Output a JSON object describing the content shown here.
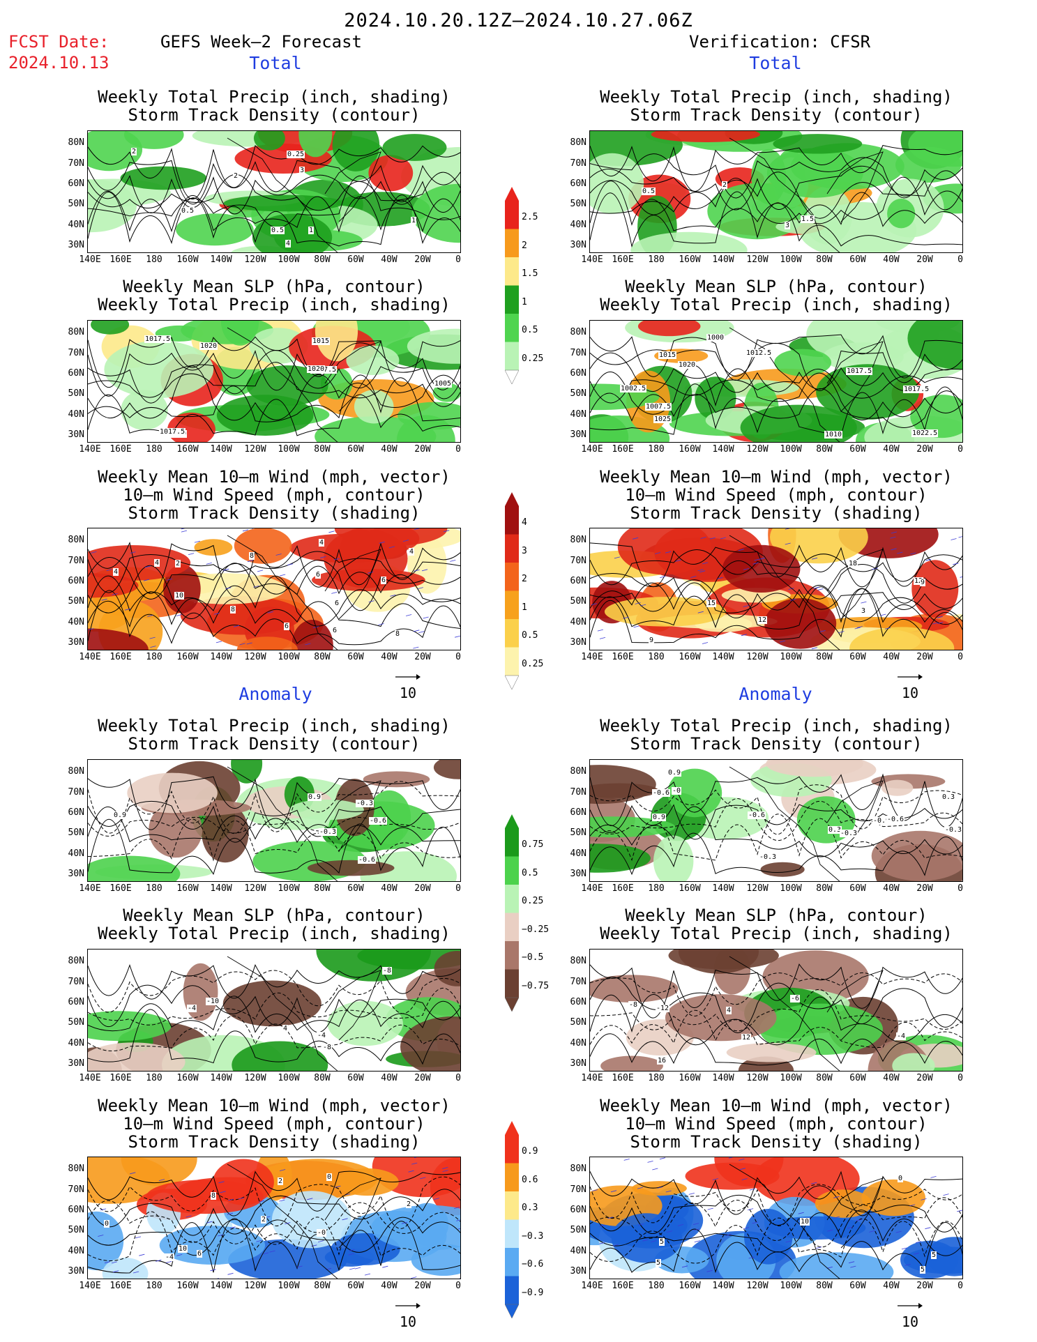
{
  "header": {
    "date_range": "2024.10.20.12Z–2024.10.27.06Z",
    "fcst_label": "FCST Date:",
    "fcst_date": "2024.10.13",
    "left_title": "GEFS Week–2 Forecast",
    "right_title": "Verification: CFSR"
  },
  "sections": {
    "total": "Total",
    "anomaly": "Anomaly"
  },
  "panel_titles": {
    "precip_storm": [
      "Weekly Total Precip (inch, shading)",
      "Storm Track Density (contour)"
    ],
    "slp_precip": [
      "Weekly Mean SLP (hPa, contour)",
      "Weekly Total Precip (inch, shading)"
    ],
    "wind_storm": [
      "Weekly Mean 10–m Wind (mph, vector)",
      "10–m Wind Speed (mph, contour)",
      "Storm Track Density (shading)"
    ]
  },
  "axes": {
    "lat_labels": [
      "80N",
      "70N",
      "60N",
      "50N",
      "40N",
      "30N"
    ],
    "lon_labels": [
      "140E",
      "160E",
      "180",
      "160W",
      "140W",
      "120W",
      "100W",
      "80W",
      "60W",
      "40W",
      "20W",
      "0"
    ]
  },
  "vector_ref": "10",
  "colorbars": {
    "precip_total": {
      "labels": [
        "2.5",
        "2",
        "1.5",
        "1",
        "0.5",
        "0.25"
      ],
      "colors": [
        "#e8231c",
        "#f79a1c",
        "#fde98a",
        "#1fa01f",
        "#4fd44f",
        "#b9f3b5"
      ]
    },
    "storm_total": {
      "labels": [
        "4",
        "3",
        "2",
        "1",
        "0.5",
        "0.25"
      ],
      "colors": [
        "#a01010",
        "#e02a18",
        "#f3641b",
        "#f7a11c",
        "#fbd04a",
        "#fdf3ad"
      ]
    },
    "precip_anom": {
      "labels": [
        "0.75",
        "0.5",
        "0.25",
        "−0.25",
        "−0.5",
        "−0.75"
      ],
      "colors": [
        "#1b9a1b",
        "#4cd24c",
        "#b9f3b5",
        "#e9cfc3",
        "#a9776a",
        "#6b4032"
      ]
    },
    "storm_anom": {
      "labels": [
        "0.9",
        "0.6",
        "0.3",
        "−0.3",
        "−0.6",
        "−0.9"
      ],
      "colors": [
        "#f0321c",
        "#f79a1c",
        "#fde98a",
        "#bfe6fb",
        "#5aaaf2",
        "#1b62d8"
      ]
    }
  },
  "contour_labels": {
    "gefs_total_precip": [
      "0.5",
      "1",
      "2",
      "0.25",
      "4",
      "2",
      "3",
      "1",
      "0.5"
    ],
    "cfsr_total_precip": [
      "2",
      "0.5",
      "3",
      "1.5"
    ],
    "gefs_total_slp": [
      "1010",
      "1015",
      "1005",
      "1007.5",
      "1020",
      "1020",
      "1017.5",
      "1017.5"
    ],
    "cfsr_total_slp": [
      "1002.5",
      "1007.5",
      "1012.5",
      "1010",
      "1015",
      "1017.5",
      "1022.5",
      "1000",
      "1020",
      "1025",
      "1017.5"
    ],
    "gefs_total_wind": [
      "4",
      "6",
      "8",
      "6",
      "4",
      "6",
      "6",
      "8",
      "10",
      "2",
      "4",
      "8",
      "4",
      "6"
    ],
    "cfsr_total_wind": [
      "3",
      "9",
      "15",
      "18",
      "12",
      "9",
      "12"
    ],
    "gefs_anom_precip": [
      "0.9",
      "-0.3",
      "-0.3",
      "-0.6",
      "-0.6",
      "0.9"
    ],
    "cfsr_anom_precip": [
      "-0.3",
      "-0.6",
      "0.9",
      "-0.9",
      "0.3",
      "0.9",
      "-0.3",
      "-0.6",
      "-0",
      "-0.6",
      "0.3",
      "-0.3"
    ],
    "gefs_anom_slp": [
      "-10",
      "-8",
      "-4",
      "-8",
      "4",
      "-4"
    ],
    "cfsr_anom_slp": [
      "16",
      "-12",
      "-8",
      "-4",
      "12",
      "4",
      "-6"
    ],
    "gefs_anom_wind": [
      "0",
      "0",
      "2",
      "2",
      "6",
      "2",
      "8",
      "10",
      "-4",
      "-0"
    ],
    "cfsr_anom_wind": [
      "0",
      "5",
      "5",
      "5",
      "5",
      "10"
    ]
  }
}
